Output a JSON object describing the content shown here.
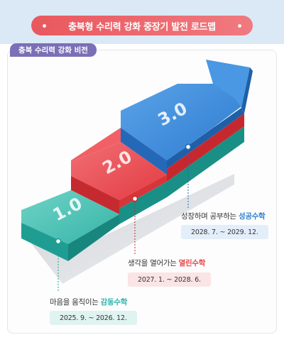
{
  "header": {
    "title": "충북형 수리력 강화 중장기 발전 로드맵"
  },
  "vision_tab": {
    "label": "충북 수리력 강화 비전"
  },
  "steps": [
    {
      "level": "1.0",
      "prefix": "마음을 움직이는 ",
      "name": "감동수학",
      "period": "2025. 9. ~ 2026. 12.",
      "color": "#2bb3a8"
    },
    {
      "level": "2.0",
      "prefix": "생각을 열어가는 ",
      "name": "열린수학",
      "period": "2027. 1. ~ 2028. 6.",
      "color": "#e84449"
    },
    {
      "level": "3.0",
      "prefix": "성장하며 공부하는 ",
      "name": "성공수학",
      "period": "2028. 7. ~ 2029. 12.",
      "color": "#2f7fd1"
    }
  ],
  "colors": {
    "teal": "#2bb3a8",
    "red": "#e84449",
    "blue": "#2f7fd1",
    "title": "#e8585e",
    "tab": "#7b70b6"
  }
}
